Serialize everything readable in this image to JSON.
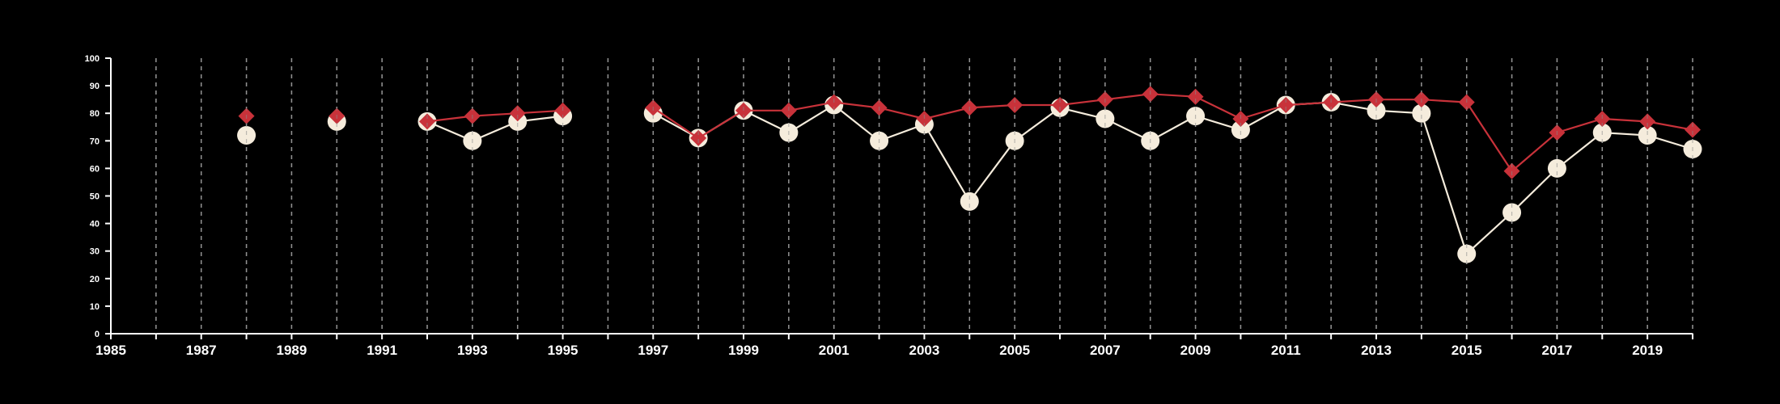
{
  "chart_data": {
    "type": "line",
    "title": "",
    "xlabel": "",
    "ylabel": "",
    "xlim": [
      1985,
      2020
    ],
    "ylim": [
      0,
      100
    ],
    "y_ticks": [
      0,
      10,
      20,
      30,
      40,
      50,
      60,
      70,
      80,
      90,
      100
    ],
    "x_tick_labels": [
      "1985",
      "1987",
      "1989",
      "1991",
      "1993",
      "1995",
      "1997",
      "1999",
      "2001",
      "2003",
      "2005",
      "2007",
      "2009",
      "2011",
      "2013",
      "2015",
      "2017",
      "2019"
    ],
    "grid": "vertical dashed lines at every year",
    "background": "#000000",
    "series": [
      {
        "color": "#f5ecdc",
        "marker": "circle",
        "points": [
          {
            "x": 1988,
            "y": 72
          },
          {
            "x": 1990,
            "y": 77
          },
          {
            "x": 1992,
            "y": 77
          },
          {
            "x": 1993,
            "y": 70
          },
          {
            "x": 1994,
            "y": 77
          },
          {
            "x": 1995,
            "y": 79
          },
          {
            "x": 1997,
            "y": 80
          },
          {
            "x": 1998,
            "y": 71
          },
          {
            "x": 1999,
            "y": 81
          },
          {
            "x": 2000,
            "y": 73
          },
          {
            "x": 2001,
            "y": 83
          },
          {
            "x": 2002,
            "y": 70
          },
          {
            "x": 2003,
            "y": 76
          },
          {
            "x": 2004,
            "y": 48
          },
          {
            "x": 2005,
            "y": 70
          },
          {
            "x": 2006,
            "y": 82
          },
          {
            "x": 2007,
            "y": 78
          },
          {
            "x": 2008,
            "y": 70
          },
          {
            "x": 2009,
            "y": 79
          },
          {
            "x": 2010,
            "y": 74
          },
          {
            "x": 2011,
            "y": 83
          },
          {
            "x": 2012,
            "y": 84
          },
          {
            "x": 2013,
            "y": 81
          },
          {
            "x": 2014,
            "y": 80
          },
          {
            "x": 2015,
            "y": 29
          },
          {
            "x": 2016,
            "y": 44
          },
          {
            "x": 2017,
            "y": 60
          },
          {
            "x": 2018,
            "y": 73
          },
          {
            "x": 2019,
            "y": 72
          },
          {
            "x": 2020,
            "y": 67
          }
        ]
      },
      {
        "color": "#c8323a",
        "marker": "diamond",
        "points": [
          {
            "x": 1988,
            "y": 79
          },
          {
            "x": 1990,
            "y": 79
          },
          {
            "x": 1992,
            "y": 77
          },
          {
            "x": 1993,
            "y": 79
          },
          {
            "x": 1994,
            "y": 80
          },
          {
            "x": 1995,
            "y": 81
          },
          {
            "x": 1997,
            "y": 82
          },
          {
            "x": 1998,
            "y": 71
          },
          {
            "x": 1999,
            "y": 81
          },
          {
            "x": 2000,
            "y": 81
          },
          {
            "x": 2001,
            "y": 84
          },
          {
            "x": 2002,
            "y": 82
          },
          {
            "x": 2003,
            "y": 78
          },
          {
            "x": 2004,
            "y": 82
          },
          {
            "x": 2005,
            "y": 83
          },
          {
            "x": 2006,
            "y": 83
          },
          {
            "x": 2007,
            "y": 85
          },
          {
            "x": 2008,
            "y": 87
          },
          {
            "x": 2009,
            "y": 86
          },
          {
            "x": 2010,
            "y": 78
          },
          {
            "x": 2011,
            "y": 83
          },
          {
            "x": 2012,
            "y": 84
          },
          {
            "x": 2013,
            "y": 85
          },
          {
            "x": 2014,
            "y": 85
          },
          {
            "x": 2015,
            "y": 84
          },
          {
            "x": 2016,
            "y": 59
          },
          {
            "x": 2017,
            "y": 73
          },
          {
            "x": 2018,
            "y": 78
          },
          {
            "x": 2019,
            "y": 77
          },
          {
            "x": 2020,
            "y": 74
          }
        ]
      }
    ]
  }
}
